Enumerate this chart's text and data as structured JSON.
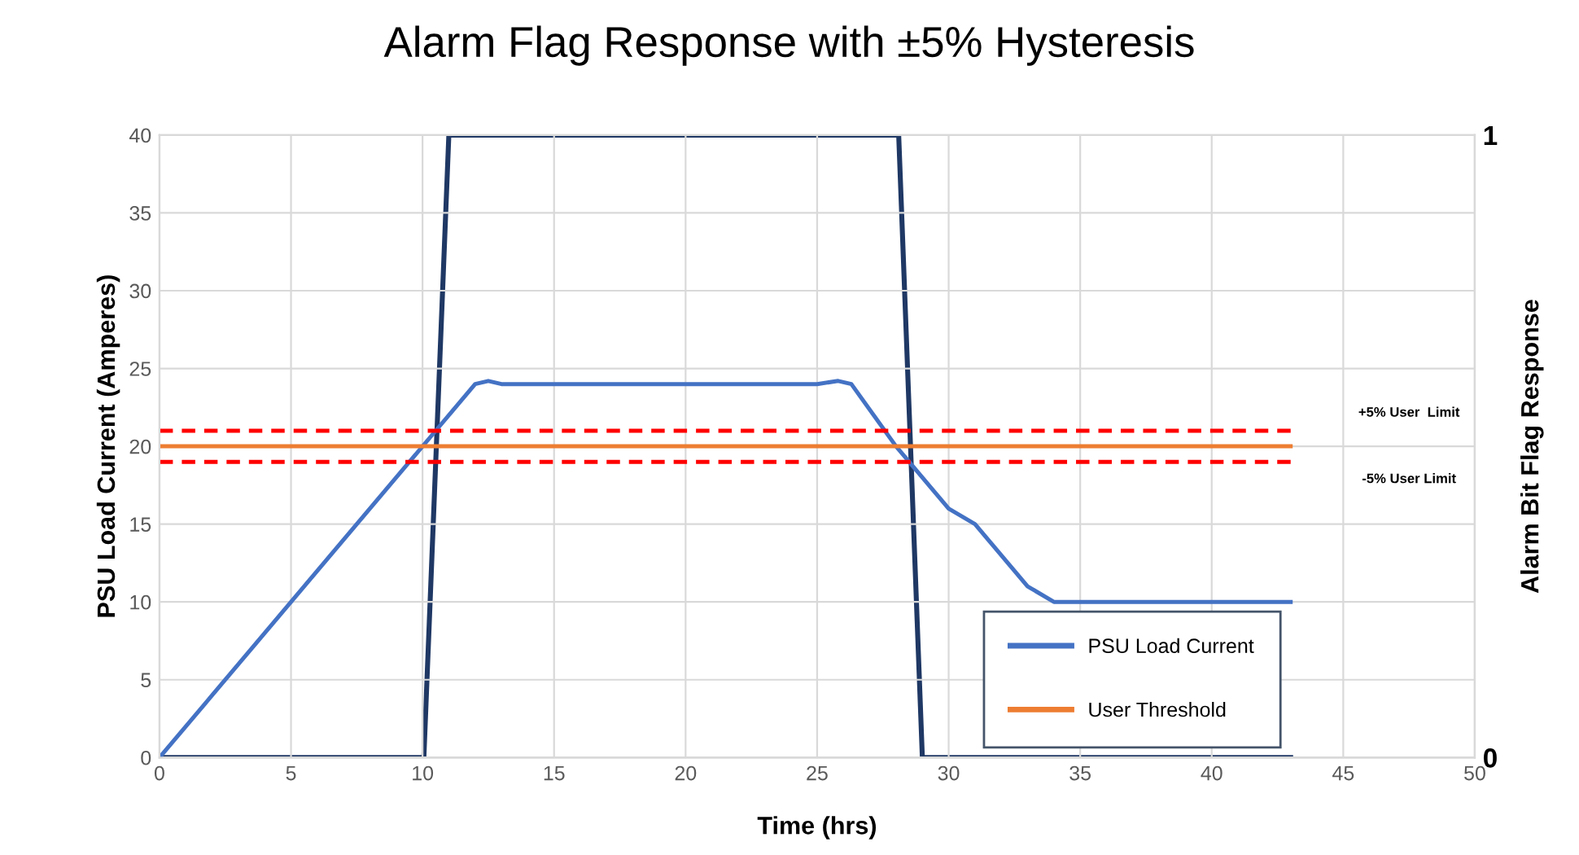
{
  "chart_data": {
    "type": "line",
    "title": "Alarm Flag Response with ±5% Hysteresis",
    "xlabel": "Time (hrs)",
    "ylabel": "PSU Load Current (Amperes)",
    "y2label": "Alarm Bit Flag Response",
    "series": [
      {
        "name": "PSU Load Current",
        "color": "#4472c4",
        "x": [
          0,
          10.5,
          12,
          12.5,
          13,
          25,
          25.8,
          26.3,
          28,
          30,
          31,
          33,
          34,
          35,
          43
        ],
        "values": [
          0,
          21,
          24,
          24.2,
          24,
          24,
          24.2,
          24,
          20,
          16,
          15,
          11,
          10,
          10,
          10
        ]
      },
      {
        "name": "User Threshold",
        "color": "#ed7d31",
        "x": [
          0,
          43
        ],
        "values": [
          20,
          20
        ]
      },
      {
        "color": "#ff0000",
        "line_style": "dashed",
        "x": [
          0,
          43
        ],
        "values": [
          21,
          21
        ]
      },
      {
        "color": "#ff0000",
        "line_style": "dashed",
        "x": [
          0,
          43
        ],
        "values": [
          19,
          19
        ]
      },
      {
        "color": "#1f3864",
        "axis": "y2",
        "x": [
          0,
          10.05,
          11,
          28.1,
          29,
          43
        ],
        "values": [
          0,
          0,
          1,
          1,
          0,
          0
        ]
      }
    ],
    "annotations": [
      "+5% User  Limit",
      "-5% User Limit"
    ],
    "xlim": [
      0,
      50
    ],
    "xticks": [
      0,
      5,
      10,
      15,
      20,
      25,
      30,
      35,
      40,
      45,
      50
    ],
    "ylim": [
      0,
      40
    ],
    "yticks": [
      0,
      5,
      10,
      15,
      20,
      25,
      30,
      35,
      40
    ],
    "y2lim": [
      0,
      1
    ],
    "y2ticks": [
      0,
      1
    ],
    "grid": true,
    "legend": "bottom right",
    "marker": "none"
  }
}
